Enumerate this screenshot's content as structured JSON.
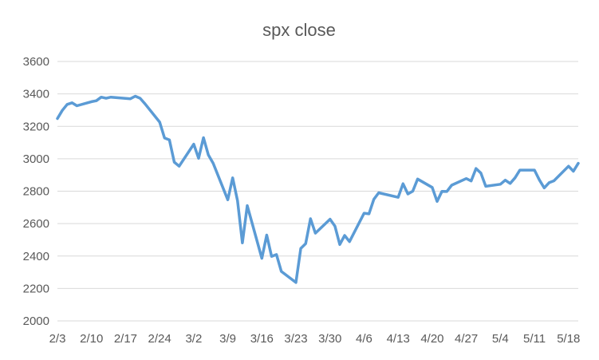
{
  "chart_data": {
    "type": "line",
    "title": "spx close",
    "xlabel": "",
    "ylabel": "",
    "ylim": [
      2000,
      3600
    ],
    "yticks": [
      2000,
      2200,
      2400,
      2600,
      2800,
      3000,
      3200,
      3400,
      3600
    ],
    "xlim": [
      "2020-02-03",
      "2020-05-20"
    ],
    "xticks": [
      {
        "date": "2020-02-03",
        "label": "2/3"
      },
      {
        "date": "2020-02-10",
        "label": "2/10"
      },
      {
        "date": "2020-02-17",
        "label": "2/17"
      },
      {
        "date": "2020-02-24",
        "label": "2/24"
      },
      {
        "date": "2020-03-02",
        "label": "3/2"
      },
      {
        "date": "2020-03-09",
        "label": "3/9"
      },
      {
        "date": "2020-03-16",
        "label": "3/16"
      },
      {
        "date": "2020-03-23",
        "label": "3/23"
      },
      {
        "date": "2020-03-30",
        "label": "3/30"
      },
      {
        "date": "2020-04-06",
        "label": "4/6"
      },
      {
        "date": "2020-04-13",
        "label": "4/13"
      },
      {
        "date": "2020-04-20",
        "label": "4/20"
      },
      {
        "date": "2020-04-27",
        "label": "4/27"
      },
      {
        "date": "2020-05-04",
        "label": "5/4"
      },
      {
        "date": "2020-05-11",
        "label": "5/11"
      },
      {
        "date": "2020-05-18",
        "label": "5/18"
      }
    ],
    "grid": "horizontal",
    "legend": "none",
    "series": [
      {
        "color": "#5b9bd5",
        "x": [
          "2020-02-03",
          "2020-02-04",
          "2020-02-05",
          "2020-02-06",
          "2020-02-07",
          "2020-02-10",
          "2020-02-11",
          "2020-02-12",
          "2020-02-13",
          "2020-02-14",
          "2020-02-18",
          "2020-02-19",
          "2020-02-20",
          "2020-02-21",
          "2020-02-24",
          "2020-02-25",
          "2020-02-26",
          "2020-02-27",
          "2020-02-28",
          "2020-03-02",
          "2020-03-03",
          "2020-03-04",
          "2020-03-05",
          "2020-03-06",
          "2020-03-09",
          "2020-03-10",
          "2020-03-11",
          "2020-03-12",
          "2020-03-13",
          "2020-03-16",
          "2020-03-17",
          "2020-03-18",
          "2020-03-19",
          "2020-03-20",
          "2020-03-23",
          "2020-03-24",
          "2020-03-25",
          "2020-03-26",
          "2020-03-27",
          "2020-03-30",
          "2020-03-31",
          "2020-04-01",
          "2020-04-02",
          "2020-04-03",
          "2020-04-06",
          "2020-04-07",
          "2020-04-08",
          "2020-04-09",
          "2020-04-13",
          "2020-04-14",
          "2020-04-15",
          "2020-04-16",
          "2020-04-17",
          "2020-04-20",
          "2020-04-21",
          "2020-04-22",
          "2020-04-23",
          "2020-04-24",
          "2020-04-27",
          "2020-04-28",
          "2020-04-29",
          "2020-04-30",
          "2020-05-01",
          "2020-05-04",
          "2020-05-05",
          "2020-05-06",
          "2020-05-07",
          "2020-05-08",
          "2020-05-11",
          "2020-05-12",
          "2020-05-13",
          "2020-05-14",
          "2020-05-15",
          "2020-05-18",
          "2020-05-19",
          "2020-05-20"
        ],
        "y": [
          3248,
          3298,
          3335,
          3345,
          3327,
          3352,
          3358,
          3380,
          3373,
          3380,
          3370,
          3386,
          3373,
          3338,
          3226,
          3128,
          3116,
          2979,
          2954,
          3090,
          3003,
          3130,
          3024,
          2972,
          2747,
          2882,
          2741,
          2481,
          2711,
          2386,
          2529,
          2398,
          2409,
          2305,
          2237,
          2447,
          2476,
          2630,
          2541,
          2627,
          2585,
          2471,
          2527,
          2489,
          2664,
          2660,
          2750,
          2790,
          2762,
          2846,
          2783,
          2800,
          2875,
          2823,
          2737,
          2799,
          2798,
          2837,
          2878,
          2863,
          2940,
          2912,
          2830,
          2843,
          2868,
          2848,
          2882,
          2930,
          2930,
          2870,
          2820,
          2852,
          2864,
          2954,
          2923,
          2972
        ]
      }
    ]
  }
}
